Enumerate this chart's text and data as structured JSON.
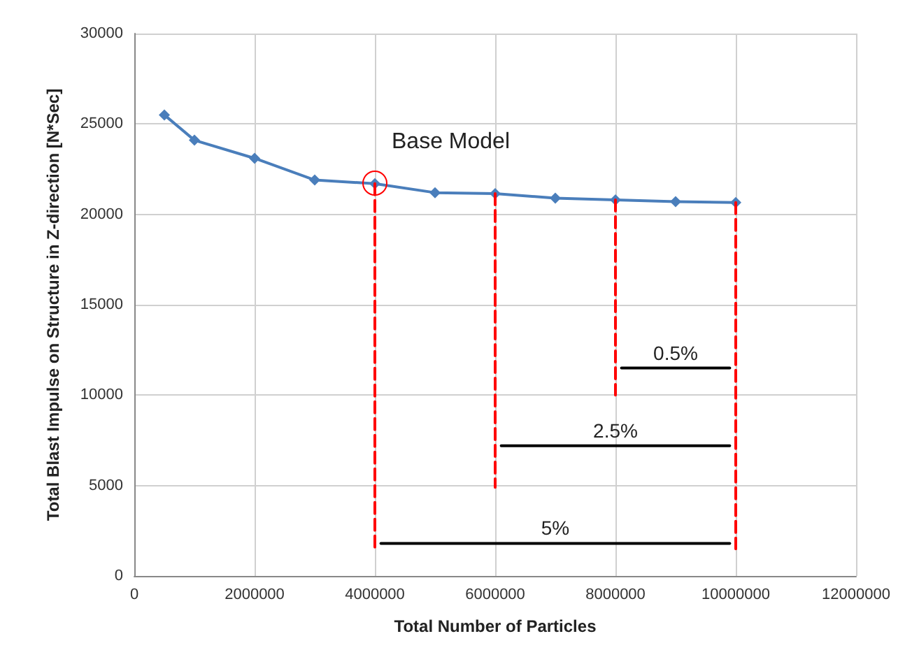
{
  "chart_data": {
    "type": "line",
    "xlabel": "Total Number of Particles",
    "ylabel": "Total Blast Impulse on Structure in Z-direction [N*Sec]",
    "xlim": [
      0,
      12000000
    ],
    "xticks": [
      0,
      2000000,
      4000000,
      6000000,
      8000000,
      10000000,
      12000000
    ],
    "ylim": [
      0,
      30000
    ],
    "yticks": [
      0,
      5000,
      10000,
      15000,
      20000,
      25000,
      30000
    ],
    "grid": true,
    "series": [
      {
        "color": "#4a7ebb",
        "marker": "diamond",
        "line_style": "solid",
        "x": [
          500000,
          1000000,
          2000000,
          3000000,
          4000000,
          5000000,
          6000000,
          7000000,
          8000000,
          9000000,
          10000000
        ],
        "values": [
          25500,
          24100,
          23100,
          21900,
          21700,
          21200,
          21150,
          20900,
          20800,
          20700,
          20650
        ]
      },
      {
        "color": "#ff0000",
        "line_style": "dashed",
        "x": [
          4000000,
          4000000
        ],
        "values": [
          21700,
          1500
        ]
      },
      {
        "color": "#ff0000",
        "line_style": "dashed",
        "x": [
          6000000,
          6000000
        ],
        "values": [
          21150,
          4900
        ]
      },
      {
        "color": "#ff0000",
        "line_style": "dashed",
        "x": [
          8000000,
          8000000
        ],
        "values": [
          20800,
          10000
        ]
      },
      {
        "color": "#ff0000",
        "line_style": "dashed",
        "x": [
          10000000,
          10000000
        ],
        "values": [
          20650,
          1500
        ]
      },
      {
        "color": "#000000",
        "line_style": "solid",
        "x": [
          8100000,
          9900000
        ],
        "values": [
          11500,
          11500
        ]
      },
      {
        "color": "#000000",
        "line_style": "solid",
        "x": [
          6100000,
          9900000
        ],
        "values": [
          7200,
          7200
        ]
      },
      {
        "color": "#000000",
        "line_style": "solid",
        "x": [
          4100000,
          9900000
        ],
        "values": [
          1800,
          1800
        ]
      }
    ],
    "annotations": [
      {
        "text": "Base Model",
        "x": 4000000,
        "y": 21700
      },
      {
        "text": "0.5%",
        "x": 9000000,
        "y": 11500
      },
      {
        "text": "2.5%",
        "x": 8000000,
        "y": 7200
      },
      {
        "text": "5%",
        "x": 7000000,
        "y": 1800
      }
    ]
  }
}
